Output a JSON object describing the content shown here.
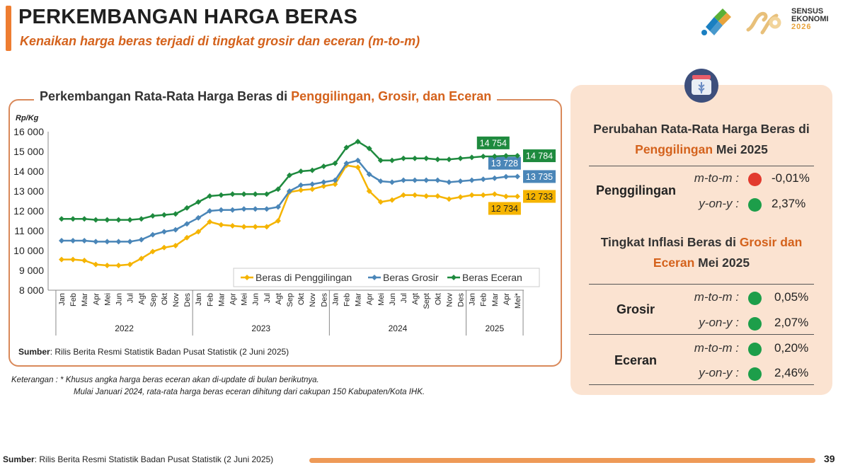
{
  "page": {
    "title": "PERKEMBANGAN HARGA BERAS",
    "subtitle": "Kenaikan harga beras terjadi di tingkat grosir dan eceran (m-to-m)",
    "logo_text": [
      "SENSUS",
      "EKONOMI",
      "2026"
    ],
    "chart_title_prefix": "Perkembangan Rata-Rata Harga Beras di ",
    "chart_title_highlight": "Penggilingan, Grosir, dan Eceran",
    "chart_source_label": "Sumber",
    "chart_source_text": ": Rilis Berita Resmi Statistik Badan Pusat Statistik (2 Juni 2025)",
    "note_line1": "Keterangan : * Khusus angka harga beras eceran akan di-update di bulan berikutnya.",
    "note_line2": "Mulai Januari 2024, rata-rata harga beras eceran dihitung dari cakupan 150 Kabupaten/Kota IHK.",
    "footer_source_label": "Sumber",
    "footer_source_text": ": Rilis Berita Resmi Statistik Badan Pusat Statistik (2 Juni 2025)",
    "page_number": "39"
  },
  "colors": {
    "penggilingan": "#f5b400",
    "grosir": "#4a86b8",
    "eceran": "#1e8a3e",
    "accent": "#ee7d31",
    "highlight_text": "#d4621c"
  },
  "panel": {
    "icon": "rice-bowl-icon",
    "heading1_line1": "Perubahan Rata-Rata Harga Beras di",
    "heading1_hl": "Penggilingan",
    "heading1_rest": " Mei 2025",
    "heading2_prefix": "Tingkat Inflasi Beras di ",
    "heading2_hl1": "Grosir dan",
    "heading2_hl2": "Eceran",
    "heading2_rest": " Mei 2025",
    "groups": [
      {
        "label": "Penggilingan",
        "rows": [
          {
            "metric": "m-to-m",
            "sep": ":",
            "direction": "down",
            "value": "-0,01%"
          },
          {
            "metric": "y-on-y",
            "sep": ":",
            "direction": "up",
            "value": "2,37%"
          }
        ]
      },
      {
        "label": "Grosir",
        "rows": [
          {
            "metric": "m-to-m",
            "sep": ":",
            "direction": "up",
            "value": "0,05%"
          },
          {
            "metric": "y-on-y",
            "sep": ":",
            "direction": "up",
            "value": "2,07%"
          }
        ]
      },
      {
        "label": "Eceran",
        "rows": [
          {
            "metric": "m-to-m",
            "sep": ":",
            "direction": "up",
            "value": "0,20%"
          },
          {
            "metric": "y-on-y",
            "sep": ":",
            "direction": "up",
            "value": "2,46%"
          }
        ]
      }
    ]
  },
  "chart_data": {
    "type": "line",
    "ylabel": "Rp/Kg",
    "ylim": [
      8000,
      16000
    ],
    "yticks": [
      8000,
      9000,
      10000,
      11000,
      12000,
      13000,
      14000,
      15000,
      16000
    ],
    "ytick_labels": [
      "8 000",
      "9 000",
      "10 000",
      "11 000",
      "12 000",
      "13 000",
      "14 000",
      "15 000",
      "16 000"
    ],
    "grid": false,
    "legend_placement": "bottom-right",
    "categories": [
      "Jan",
      "Feb",
      "Mar",
      "Apr",
      "Mei",
      "Jun",
      "Jul",
      "Agt",
      "Sep",
      "Okt",
      "Nov",
      "Des",
      "Jan",
      "Feb",
      "Mar",
      "Apr",
      "Mei",
      "Jun",
      "Jul",
      "Agt",
      "Sep",
      "Okt",
      "Nov",
      "Des",
      "Jan",
      "Feb",
      "Mar",
      "Apr",
      "Mei",
      "Jun",
      "Jul",
      "Agt",
      "Sept",
      "Okt",
      "Nov",
      "Des",
      "Jan",
      "Feb",
      "Mar",
      "Apr",
      "Mei*"
    ],
    "years": [
      {
        "label": "2022",
        "start": 0,
        "end": 11
      },
      {
        "label": "2023",
        "start": 12,
        "end": 23
      },
      {
        "label": "2024",
        "start": 24,
        "end": 35
      },
      {
        "label": "2025",
        "start": 36,
        "end": 40
      }
    ],
    "series": [
      {
        "name": "Beras di Penggilingan",
        "key": "penggilingan",
        "values": [
          9550,
          9550,
          9500,
          9300,
          9250,
          9250,
          9300,
          9600,
          9950,
          10150,
          10250,
          10650,
          10950,
          11450,
          11300,
          11250,
          11200,
          11200,
          11200,
          11500,
          12950,
          13050,
          13100,
          13250,
          13350,
          14300,
          14200,
          13000,
          12450,
          12550,
          12800,
          12800,
          12750,
          12750,
          12600,
          12700,
          12800,
          12800,
          12850,
          12734,
          12733
        ],
        "labels": [
          {
            "index": 39,
            "text": "12 734",
            "pos": "below"
          },
          {
            "index": 40,
            "text": "12 733",
            "pos": "right"
          }
        ]
      },
      {
        "name": "Beras Grosir",
        "key": "grosir",
        "values": [
          10500,
          10500,
          10500,
          10450,
          10450,
          10450,
          10450,
          10550,
          10800,
          10950,
          11050,
          11350,
          11650,
          12000,
          12050,
          12050,
          12100,
          12100,
          12100,
          12200,
          13000,
          13300,
          13350,
          13450,
          13550,
          14400,
          14550,
          13850,
          13500,
          13450,
          13550,
          13550,
          13550,
          13550,
          13450,
          13500,
          13550,
          13600,
          13650,
          13728,
          13735
        ],
        "labels": [
          {
            "index": 39,
            "text": "13 728",
            "pos": "above"
          },
          {
            "index": 40,
            "text": "13 735",
            "pos": "right"
          }
        ]
      },
      {
        "name": "Beras Eceran",
        "key": "eceran",
        "values": [
          11600,
          11600,
          11600,
          11550,
          11550,
          11550,
          11550,
          11600,
          11750,
          11800,
          11850,
          12150,
          12450,
          12750,
          12800,
          12850,
          12850,
          12850,
          12850,
          13100,
          13800,
          14000,
          14050,
          14250,
          14400,
          15200,
          15500,
          15150,
          14550,
          14550,
          14650,
          14650,
          14650,
          14600,
          14600,
          14650,
          14700,
          14750,
          14754,
          14780,
          14784
        ],
        "labels": [
          {
            "index": 38,
            "text": "14 754",
            "pos": "above"
          },
          {
            "index": 40,
            "text": "14 784",
            "pos": "right"
          }
        ]
      }
    ]
  }
}
